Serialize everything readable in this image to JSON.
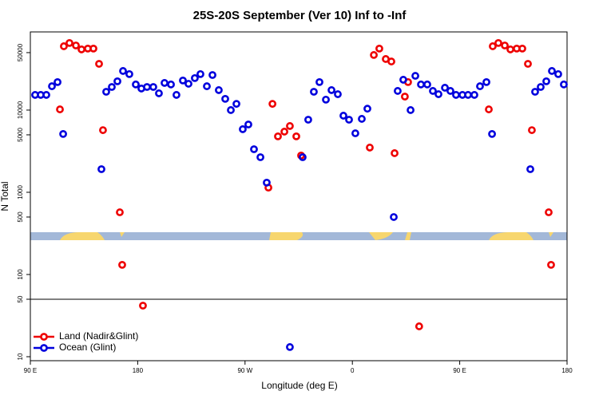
{
  "chart_data": {
    "type": "scatter",
    "title": "25S-20S September (Ver 10)   Inf to -Inf",
    "xlabel": "Longitude (deg E)",
    "ylabel": "N Total",
    "xlim": [
      90,
      540
    ],
    "xticks": [
      {
        "value": 90,
        "label": "90 E"
      },
      {
        "value": 180,
        "label": "180"
      },
      {
        "value": 270,
        "label": "90 W"
      },
      {
        "value": 360,
        "label": "0"
      },
      {
        "value": 450,
        "label": "90 E"
      },
      {
        "value": 540,
        "label": "180"
      }
    ],
    "ylim": [
      8.94,
      89300
    ],
    "yscale": "log",
    "yticks": [
      10,
      50,
      100,
      500,
      1000,
      5000,
      10000,
      50000
    ],
    "legend": "bottom-left",
    "series": [
      {
        "name": "Land (Nadir&Glint)",
        "color": "#ee0000",
        "x": [
          114.8,
          118.1,
          122.8,
          128.2,
          132.9,
          138.2,
          142.9,
          147.6,
          150.9,
          165,
          167,
          184.4,
          289.6,
          293,
          297.6,
          303,
          307.6,
          313,
          317,
          374.6,
          378,
          382.6,
          388,
          392.7,
          395.4,
          404,
          406.7,
          416,
          474.4,
          477.7,
          482.4,
          487.8,
          492.5,
          497.8,
          502.5,
          507.2,
          510.5,
          524.6,
          526.6
        ],
        "values": [
          10200,
          59800,
          65500,
          61100,
          54700,
          56000,
          56000,
          36500,
          5700,
          571,
          131,
          41.8,
          1140,
          11900,
          4790,
          5470,
          6400,
          4790,
          2800,
          3500,
          46800,
          56000,
          41800,
          39000,
          2990,
          14600,
          21900,
          23.4,
          10200,
          59800,
          65500,
          61100,
          54700,
          56000,
          56000,
          36500,
          5700,
          571,
          131
        ]
      },
      {
        "name": "Ocean (Glint)",
        "color": "#0000dd",
        "x": [
          94,
          98.7,
          103.4,
          108.1,
          112.8,
          117.5,
          149.6,
          153.6,
          158.3,
          163,
          167.7,
          173,
          178.4,
          183.1,
          187.8,
          193.1,
          197.8,
          202.5,
          207.9,
          212.5,
          217.9,
          222.6,
          227.9,
          232.6,
          238,
          242.7,
          248,
          253.4,
          258.1,
          262.8,
          268.1,
          272.8,
          277.5,
          282.9,
          288.2,
          307.6,
          318.3,
          323,
          327.7,
          332.4,
          337.8,
          342.5,
          347.8,
          352.5,
          357.2,
          362.5,
          367.9,
          372.6,
          394.7,
          398,
          402.7,
          408.8,
          412.8,
          417.5,
          422.8,
          427.5,
          432.2,
          437.6,
          442.2,
          446.9,
          452.3,
          457,
          462.3,
          467,
          472.4,
          477.1,
          509.2,
          513.2,
          517.9,
          522.6,
          527.3,
          532.6,
          537.3
        ],
        "values": [
          15300,
          15300,
          15300,
          19500,
          21900,
          5120,
          1910,
          16700,
          19100,
          22400,
          29900,
          27400,
          20500,
          18300,
          19100,
          19100,
          16000,
          21400,
          20500,
          15300,
          22900,
          20900,
          24500,
          27400,
          19500,
          26700,
          17500,
          13700,
          10000,
          11900,
          5850,
          6680,
          3340,
          2670,
          1310,
          13.1,
          2670,
          7640,
          16700,
          21900,
          13400,
          17500,
          15600,
          8550,
          7640,
          5220,
          7820,
          10400,
          500,
          17100,
          23400,
          10000,
          26100,
          20500,
          20500,
          17100,
          15600,
          18700,
          17100,
          15300,
          15300,
          15300,
          15300,
          19500,
          21900,
          5120,
          1910,
          16700,
          19100,
          22400,
          29900,
          27400,
          20500
        ]
      }
    ]
  }
}
